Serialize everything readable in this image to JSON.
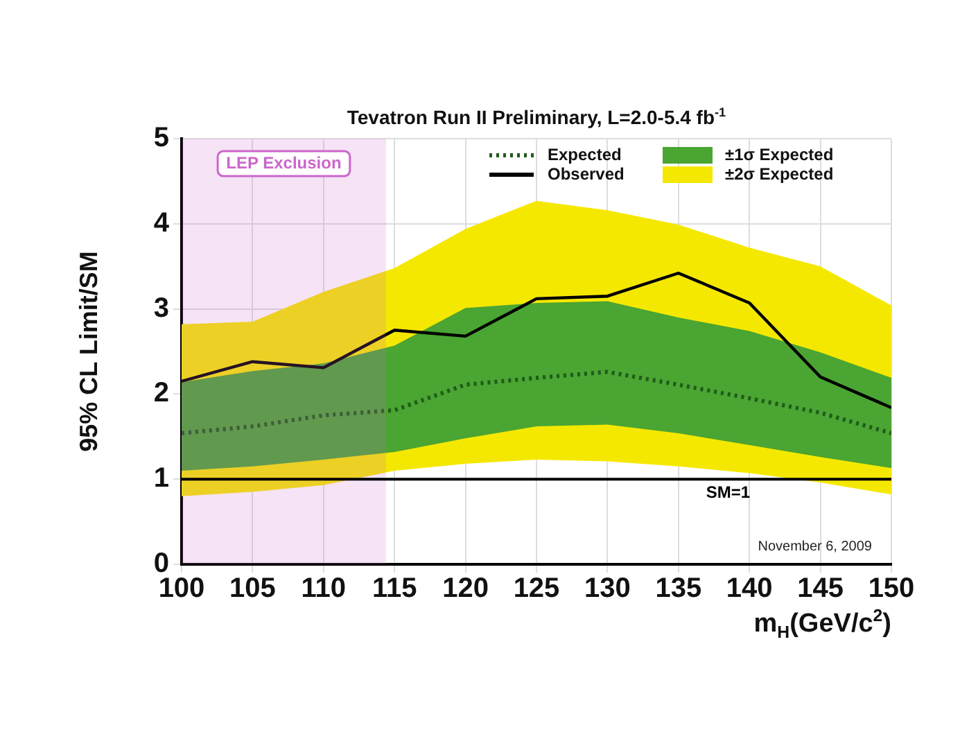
{
  "chart_data": {
    "type": "line",
    "title": "Tevatron Run II Preliminary, L=2.0-5.4 fb$^{-1}$",
    "xlabel": "m$_{H}$(GeV/c$^{2}$)",
    "ylabel": "95% CL Limit/SM",
    "x": [
      100,
      105,
      110,
      115,
      120,
      125,
      130,
      135,
      140,
      145,
      150
    ],
    "xlim": [
      100,
      150
    ],
    "xticks": [
      100,
      105,
      110,
      115,
      120,
      125,
      130,
      135,
      140,
      145,
      150
    ],
    "ylim": [
      0,
      5
    ],
    "yticks": [
      0,
      1,
      2,
      3,
      4,
      5
    ],
    "grid": true,
    "legend": "top right",
    "marker": "none",
    "series": [
      {
        "name": "±2σ Expected",
        "type": "line",
        "color": "#f5e800",
        "values": [
          null,
          null,
          null,
          null,
          null,
          null,
          null,
          null,
          null,
          null,
          null
        ],
        "upper": [
          2.82,
          2.85,
          3.2,
          3.48,
          3.94,
          4.27,
          4.16,
          3.99,
          3.72,
          3.5,
          3.04
        ],
        "lower": [
          0.8,
          0.85,
          0.93,
          1.1,
          1.18,
          1.23,
          1.21,
          1.15,
          1.07,
          0.96,
          0.82
        ]
      },
      {
        "name": "±1σ Expected",
        "type": "line",
        "color": "#4aa532",
        "values": [
          null,
          null,
          null,
          null,
          null,
          null,
          null,
          null,
          null,
          null,
          null
        ],
        "upper": [
          2.14,
          2.27,
          2.36,
          2.57,
          3.01,
          3.07,
          3.09,
          2.9,
          2.74,
          2.49,
          2.19
        ],
        "lower": [
          1.1,
          1.15,
          1.23,
          1.32,
          1.48,
          1.62,
          1.64,
          1.54,
          1.4,
          1.26,
          1.13
        ]
      },
      {
        "name": "Expected",
        "type": "line",
        "color": "#1f5c1a",
        "line_style": "dotted",
        "values": [
          1.54,
          1.62,
          1.75,
          1.81,
          2.11,
          2.19,
          2.26,
          2.11,
          1.95,
          1.78,
          1.54
        ]
      },
      {
        "name": "Observed",
        "type": "line",
        "color": "#000000",
        "line_style": "solid",
        "values": [
          2.15,
          2.38,
          2.31,
          2.75,
          2.68,
          3.12,
          3.15,
          3.42,
          3.07,
          2.2,
          1.84
        ]
      }
    ],
    "bands": [
      {
        "axis": "x",
        "from": 100,
        "to": 114.4,
        "label": "LEP Exclusion",
        "color": "#cc66cc"
      }
    ],
    "ref_lines": [
      {
        "axis": "y",
        "value": 1,
        "label": "SM=1",
        "color": "#000000"
      }
    ],
    "annotations": [
      "November 6, 2009"
    ]
  }
}
